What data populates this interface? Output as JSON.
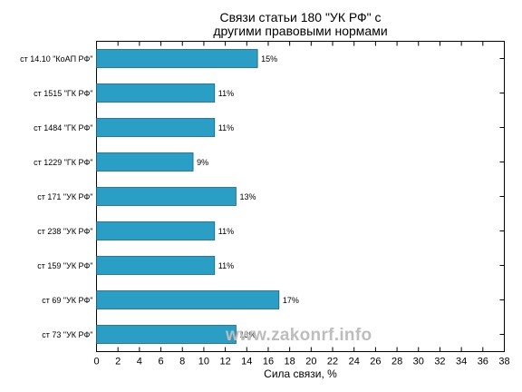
{
  "chart_data": {
    "type": "bar",
    "orientation": "horizontal",
    "title_line1": "Связи статьи 180 \"УК РФ\" с",
    "title_line2": "другими правовыми нормами",
    "xlabel": "Сила связи, %",
    "ylabel": "",
    "xlim": [
      0,
      38
    ],
    "x_ticks": [
      0,
      2,
      4,
      6,
      8,
      10,
      12,
      14,
      16,
      18,
      20,
      22,
      24,
      26,
      28,
      30,
      32,
      34,
      36,
      38
    ],
    "categories": [
      "ст 14.10 \"КоАП РФ\"",
      "ст 1515 \"ГК РФ\"",
      "ст 1484 \"ГК РФ\"",
      "ст 1229 \"ГК РФ\"",
      "ст 171 \"УК РФ\"",
      "ст 238 \"УК РФ\"",
      "ст 159 \"УК РФ\"",
      "ст 69 \"УК РФ\"",
      "ст 73 \"УК РФ\""
    ],
    "values": [
      15,
      11,
      11,
      9,
      13,
      11,
      11,
      17,
      13
    ],
    "data_labels": [
      "15%",
      "11%",
      "11%",
      "9%",
      "13%",
      "11%",
      "11%",
      "17%",
      "13%"
    ],
    "bar_color": "#2a9ec5",
    "grid": false,
    "legend": "none"
  },
  "watermark": "www.zakonrf.info"
}
